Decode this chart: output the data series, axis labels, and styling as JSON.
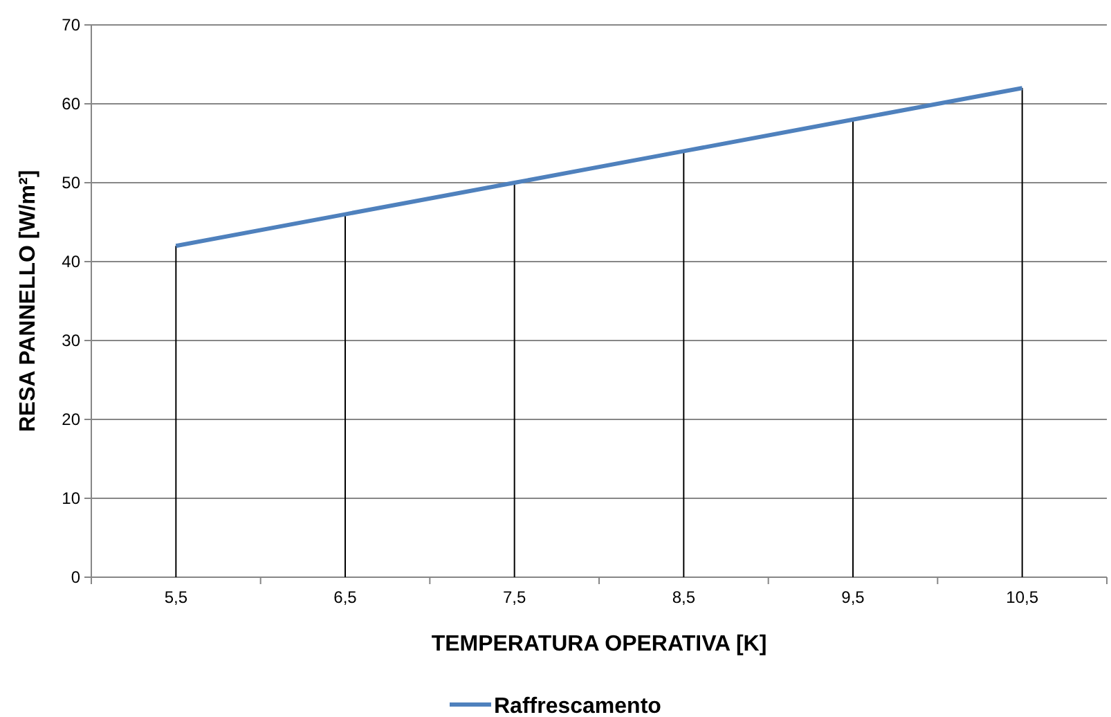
{
  "chart_data": {
    "type": "line",
    "xlabel": "TEMPERATURA OPERATIVA [K]",
    "ylabel": "RESA PANNELLO [W/m²]",
    "categories": [
      "5,5",
      "6,5",
      "7,5",
      "8,5",
      "9,5",
      "10,5"
    ],
    "series": [
      {
        "type": "bar",
        "color": "#000000",
        "values": [
          42,
          46,
          50,
          54,
          58,
          62
        ]
      },
      {
        "name": "Raffrescamento",
        "color": "#4f81bd",
        "values": [
          42,
          46,
          50,
          54,
          58,
          62
        ]
      }
    ],
    "ylim": [
      0,
      70
    ],
    "yticks": [
      0,
      10,
      20,
      30,
      40,
      50,
      60,
      70
    ],
    "grid": "y",
    "legend": "bottom",
    "marker": "none",
    "line_style": "solid"
  }
}
